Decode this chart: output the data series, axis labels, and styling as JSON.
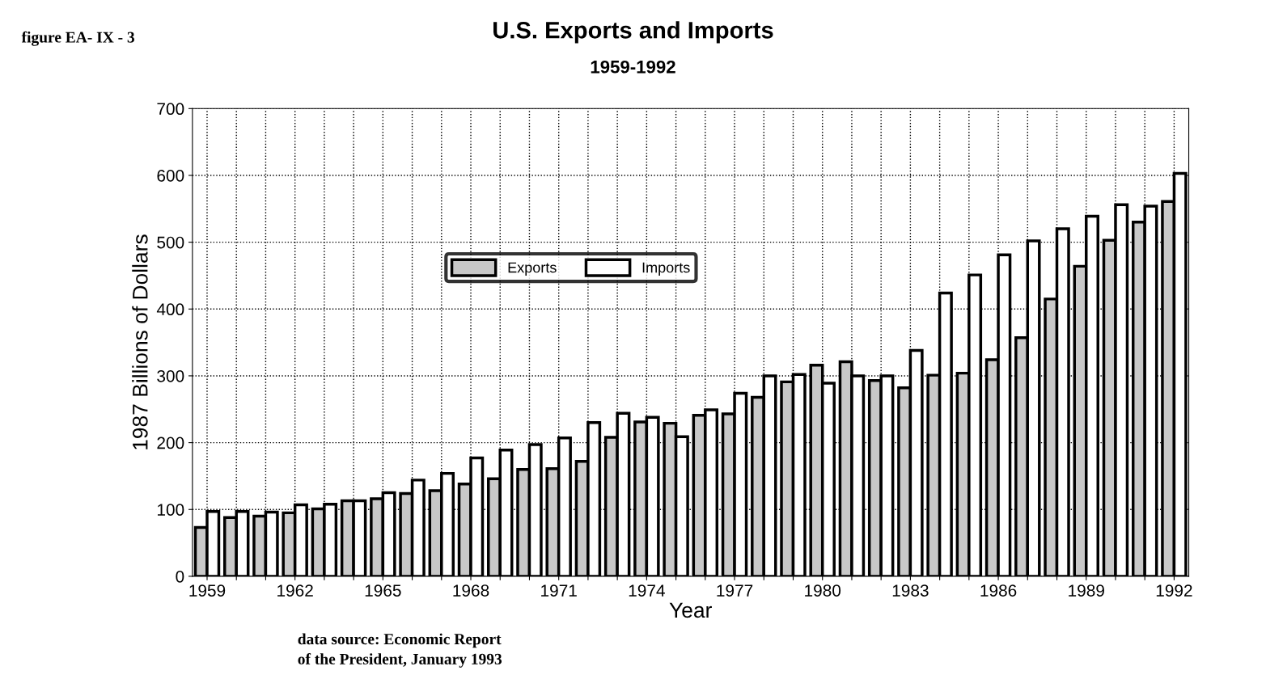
{
  "chart_data": {
    "type": "bar",
    "title": "U.S. Exports and Imports",
    "subtitle": "1959-1992",
    "xlabel": "Year",
    "ylabel": "1987 Billions of Dollars",
    "categories": [
      "1959",
      null,
      null,
      "1962",
      null,
      null,
      "1965",
      null,
      null,
      "1968",
      null,
      null,
      "1971",
      null,
      null,
      "1974",
      null,
      null,
      "1977",
      null,
      null,
      "1980",
      null,
      null,
      "1983",
      null,
      null,
      "1986",
      null,
      null,
      "1989",
      null,
      null,
      "1992"
    ],
    "series": [
      {
        "name": "Exports",
        "color": "#c8c8c8",
        "values": [
          73,
          88,
          90,
          95,
          101,
          113,
          116,
          124,
          128,
          138,
          146,
          160,
          161,
          172,
          208,
          231,
          229,
          241,
          243,
          268,
          291,
          316,
          321,
          293,
          282,
          301,
          304,
          324,
          357,
          415,
          464,
          503,
          530,
          561
        ]
      },
      {
        "name": "Imports",
        "color": "#ffffff",
        "values": [
          97,
          97,
          96,
          107,
          108,
          113,
          125,
          144,
          154,
          177,
          189,
          197,
          207,
          230,
          244,
          238,
          209,
          249,
          274,
          300,
          302,
          289,
          300,
          300,
          338,
          424,
          451,
          481,
          502,
          520,
          539,
          556,
          554,
          603
        ]
      }
    ],
    "ylim": [
      0,
      700
    ],
    "yticks": [
      0,
      100,
      200,
      300,
      400,
      500,
      600,
      700
    ],
    "grid": true,
    "legend": "center",
    "annotations": [
      "figure EA- IX - 3",
      "data source: Economic Report\nof the President, January 1993"
    ]
  }
}
